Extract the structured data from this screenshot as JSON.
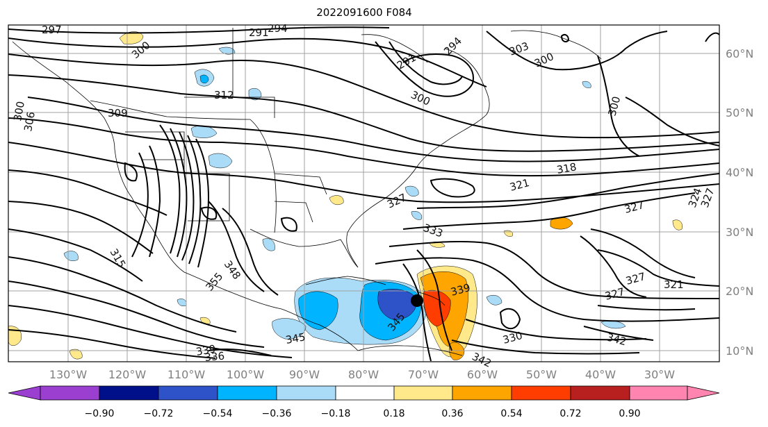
{
  "title": "2022091600 F084",
  "lon_labels": [
    "130°W",
    "120°W",
    "110°W",
    "100°W",
    "90°W",
    "80°W",
    "70°W",
    "60°W",
    "50°W",
    "40°W",
    "30°W"
  ],
  "lat_labels": [
    "60°N",
    "50°N",
    "40°N",
    "30°N",
    "20°N",
    "10°N"
  ],
  "contour_labels": [
    "297",
    "294",
    "300",
    "291",
    "294",
    "303",
    "300",
    "312",
    "309",
    "306",
    "300",
    "291",
    "300",
    "318",
    "321",
    "327",
    "327",
    "324",
    "327",
    "333",
    "315",
    "348",
    "355",
    "339",
    "330",
    "321",
    "327",
    "345",
    "342",
    "339",
    "336",
    "342",
    "345"
  ],
  "colorbar": {
    "ticks": [
      "−0.90",
      "−0.72",
      "−0.54",
      "−0.36",
      "−0.18",
      "0.18",
      "0.36",
      "0.54",
      "0.72",
      "0.90"
    ],
    "colors": [
      "#9a3fd0",
      "#000f8a",
      "#2e52c8",
      "#00b4ff",
      "#aadcf8",
      "#ffffff",
      "#ffe98a",
      "#ffa500",
      "#ff3d00",
      "#b81f1f",
      "#ff85b0"
    ]
  },
  "marker": "black dot"
}
